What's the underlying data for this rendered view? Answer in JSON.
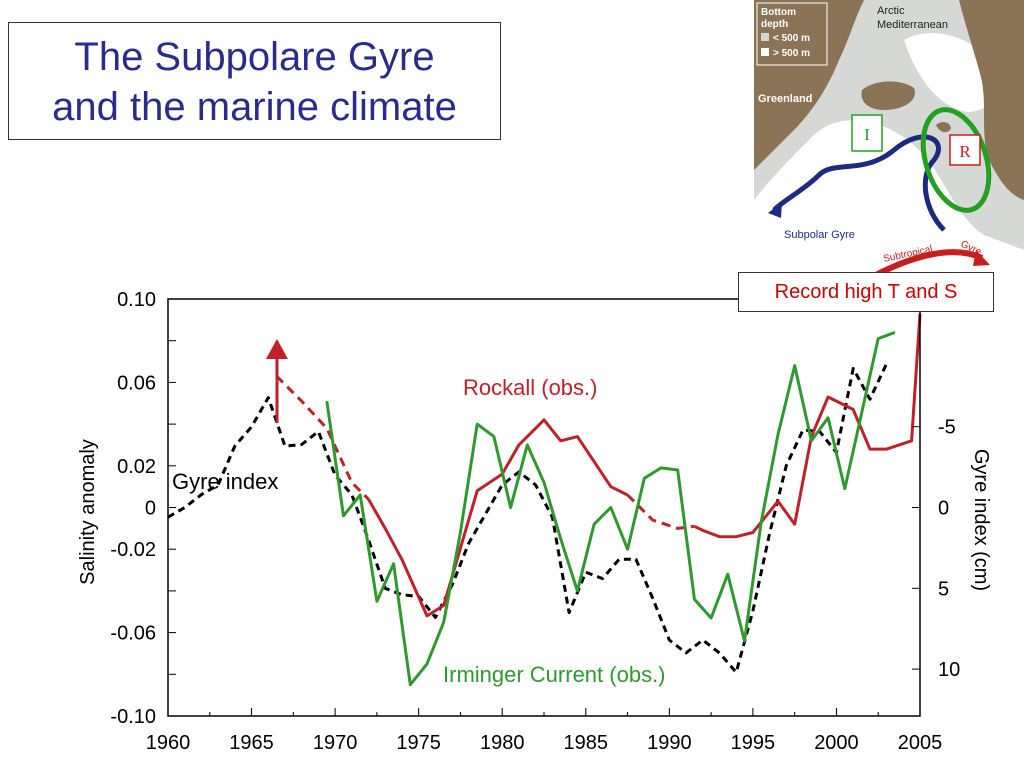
{
  "slide": {
    "title_line1": "The Subpolare Gyre",
    "title_line2": "and the marine climate",
    "callout": "Record high T and S"
  },
  "map": {
    "legend_title_1": "Bottom",
    "legend_title_2": "depth",
    "legend_shallow": "< 500 m",
    "legend_deep": "> 500 m",
    "label_arctic_1": "Arctic",
    "label_arctic_2": "Mediterranean",
    "label_greenland": "Greenland",
    "label_subpolar": "Subpolar Gyre",
    "label_subtropical": "Subtropical",
    "label_gyre": "Gyre",
    "box_i": "I",
    "box_r": "R",
    "colors": {
      "land": "#8b7355",
      "shallow": "#d6d8d6",
      "deep": "#ffffff",
      "subpolar": "#1c2a80",
      "subtropical": "#c81e1e",
      "rockall_region": "#22a022"
    }
  },
  "chart_data": {
    "type": "line",
    "xlim": [
      1960,
      2005
    ],
    "ylim": [
      -0.1,
      0.1
    ],
    "y2lim": [
      12.9,
      -12.9
    ],
    "x_ticks": [
      1960,
      1965,
      1970,
      1975,
      1980,
      1985,
      1990,
      1995,
      2000,
      2005
    ],
    "x_tick_labels": [
      "1960",
      "1965",
      "1970",
      "1975",
      "1980",
      "1985",
      "1990",
      "1995",
      "2000",
      "2005"
    ],
    "y_tick_labels": [
      {
        "value": 0.1,
        "label": "0.10"
      },
      {
        "value": 0.06,
        "label": "0.06"
      },
      {
        "value": 0.02,
        "label": "0.02"
      },
      {
        "value": 0.0,
        "label": "0"
      },
      {
        "value": -0.02,
        "label": "-0.02"
      },
      {
        "value": -0.06,
        "label": "-0.06"
      },
      {
        "value": -0.1,
        "label": "-0.10"
      }
    ],
    "y2_tick_labels": [
      {
        "value": -5,
        "label": "-5"
      },
      {
        "value": 0,
        "label": "0"
      },
      {
        "value": 5,
        "label": "5"
      },
      {
        "value": 10,
        "label": "10"
      }
    ],
    "ylabel": "Salinity anomaly",
    "y2label": "Gyre index (cm)",
    "series": [
      {
        "name": "Gyre index",
        "color": "#000000",
        "style": "dashed",
        "axis": "secondary",
        "points": [
          [
            1960,
            0.6
          ],
          [
            1961,
            0.0
          ],
          [
            1962,
            -0.8
          ],
          [
            1963,
            -1.4
          ],
          [
            1964,
            -3.8
          ],
          [
            1965,
            -5.0
          ],
          [
            1966,
            -6.8
          ],
          [
            1967,
            -3.8
          ],
          [
            1968,
            -3.9
          ],
          [
            1969,
            -4.7
          ],
          [
            1970,
            -2.0
          ],
          [
            1971,
            -0.8
          ],
          [
            1972,
            2.0
          ],
          [
            1973,
            5.0
          ],
          [
            1974,
            5.4
          ],
          [
            1975,
            5.5
          ],
          [
            1976,
            6.8
          ],
          [
            1977,
            4.8
          ],
          [
            1978,
            2.2
          ],
          [
            1979,
            0.4
          ],
          [
            1980,
            -1.4
          ],
          [
            1981,
            -2.2
          ],
          [
            1982,
            -1.4
          ],
          [
            1983,
            0.6
          ],
          [
            1984,
            6.5
          ],
          [
            1985,
            4.0
          ],
          [
            1986,
            4.4
          ],
          [
            1987,
            3.2
          ],
          [
            1988,
            3.2
          ],
          [
            1989,
            5.6
          ],
          [
            1990,
            8.2
          ],
          [
            1991,
            9.0
          ],
          [
            1992,
            8.2
          ],
          [
            1993,
            9.0
          ],
          [
            1994,
            10.2
          ],
          [
            1995,
            6.4
          ],
          [
            1996,
            1.6
          ],
          [
            1997,
            -2.6
          ],
          [
            1998,
            -4.8
          ],
          [
            1999,
            -4.7
          ],
          [
            2000,
            -3.4
          ],
          [
            2001,
            -8.6
          ],
          [
            2002,
            -6.7
          ],
          [
            2003,
            -8.9
          ]
        ]
      },
      {
        "name": "Rockall (obs.)",
        "color": "#c0202a",
        "style": "solid",
        "axis": "primary",
        "segments": [
          {
            "dashed": true,
            "points": [
              [
                1966.5,
                0.063
              ],
              [
                1968,
                0.051
              ],
              [
                1969.5,
                0.038
              ],
              [
                1971,
                0.012
              ],
              [
                1972,
                0.004
              ]
            ]
          },
          {
            "dashed": false,
            "points": [
              [
                1972,
                0.004
              ],
              [
                1973,
                -0.01
              ],
              [
                1974,
                -0.025
              ],
              [
                1975.5,
                -0.052
              ],
              [
                1976.5,
                -0.047
              ],
              [
                1978.5,
                0.008
              ],
              [
                1980,
                0.016
              ],
              [
                1981,
                0.03
              ],
              [
                1982.5,
                0.042
              ],
              [
                1983.5,
                0.032
              ],
              [
                1984.5,
                0.034
              ],
              [
                1985.5,
                0.022
              ],
              [
                1986.5,
                0.01
              ],
              [
                1987.5,
                0.006
              ]
            ]
          },
          {
            "dashed": true,
            "points": [
              [
                1987.5,
                0.006
              ],
              [
                1989,
                -0.006
              ],
              [
                1990.5,
                -0.01
              ],
              [
                1991.5,
                -0.009
              ]
            ]
          },
          {
            "dashed": false,
            "points": [
              [
                1991.5,
                -0.009
              ],
              [
                1992,
                -0.011
              ],
              [
                1993,
                -0.014
              ],
              [
                1994,
                -0.014
              ],
              [
                1995,
                -0.012
              ],
              [
                1996.5,
                0.003
              ],
              [
                1997.5,
                -0.008
              ],
              [
                1998.5,
                0.034
              ],
              [
                1999.5,
                0.053
              ],
              [
                2001,
                0.047
              ],
              [
                2002,
                0.028
              ],
              [
                2003,
                0.028
              ],
              [
                2004.5,
                0.032
              ],
              [
                2005,
                0.093
              ]
            ]
          }
        ]
      },
      {
        "name": "Irminger Current (obs.)",
        "color": "#2e9a2e",
        "style": "solid",
        "axis": "primary",
        "points": [
          [
            1969.5,
            0.051
          ],
          [
            1970.5,
            -0.004
          ],
          [
            1971.5,
            0.006
          ],
          [
            1972.5,
            -0.045
          ],
          [
            1973.5,
            -0.027
          ],
          [
            1974.5,
            -0.085
          ],
          [
            1975.5,
            -0.075
          ],
          [
            1976.5,
            -0.055
          ],
          [
            1977.5,
            -0.012
          ],
          [
            1978.5,
            0.04
          ],
          [
            1979.5,
            0.034
          ],
          [
            1980.5,
            0.0
          ],
          [
            1981.5,
            0.03
          ],
          [
            1982.5,
            0.012
          ],
          [
            1983.5,
            -0.015
          ],
          [
            1984.5,
            -0.04
          ],
          [
            1985.5,
            -0.008
          ],
          [
            1986.5,
            0.0
          ],
          [
            1987.5,
            -0.02
          ],
          [
            1988.5,
            0.014
          ],
          [
            1989.5,
            0.019
          ],
          [
            1990.5,
            0.018
          ],
          [
            1991.5,
            -0.044
          ],
          [
            1992.5,
            -0.053
          ],
          [
            1993.5,
            -0.032
          ],
          [
            1994.5,
            -0.064
          ],
          [
            1995.5,
            -0.007
          ],
          [
            1996.5,
            0.035
          ],
          [
            1997.5,
            0.068
          ],
          [
            1998.5,
            0.032
          ],
          [
            1999.5,
            0.043
          ],
          [
            2000.5,
            0.009
          ],
          [
            2001.5,
            0.045
          ],
          [
            2002.5,
            0.081
          ],
          [
            2003.5,
            0.084
          ]
        ]
      }
    ],
    "annotations": {
      "gyre_label": "Gyre index",
      "rockall_label": "Rockall (obs.)",
      "irminger_label": "Irminger Current (obs.)"
    }
  }
}
